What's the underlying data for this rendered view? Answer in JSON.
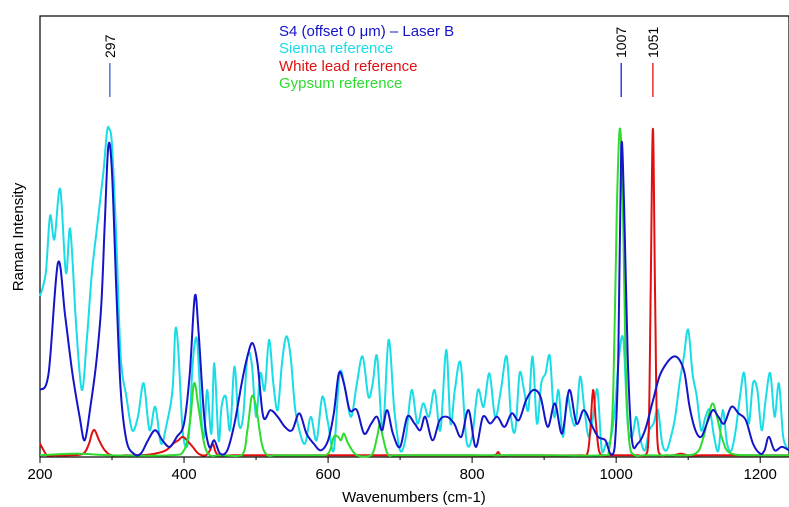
{
  "chart_data": {
    "type": "line",
    "xlabel": "Wavenumbers (cm-1)",
    "ylabel": "Raman Intensity",
    "xlim": [
      200,
      1240
    ],
    "ylim": [
      0,
      1.0
    ],
    "x_ticks": [
      "200",
      "400",
      "600",
      "800",
      "1000",
      "1200"
    ],
    "x_tick_values": [
      200,
      400,
      600,
      800,
      1000,
      1200
    ],
    "grid": false,
    "legend_position": "top-center",
    "peak_labels": [
      {
        "text": "297",
        "x": 297,
        "color": "#3b5bd6"
      },
      {
        "text": "1007",
        "x": 1007,
        "color": "#1a1ad6"
      },
      {
        "text": "1051",
        "x": 1051,
        "color": "#e01010"
      }
    ],
    "series": [
      {
        "name": "S4 (offset 0 μm) – Laser B",
        "color": "#1414c8",
        "x": [
          200,
          212,
          225,
          235,
          245,
          255,
          262,
          270,
          278,
          285,
          290,
          295,
          300,
          306,
          312,
          320,
          330,
          340,
          350,
          360,
          370,
          380,
          390,
          400,
          408,
          415,
          420,
          428,
          435,
          442,
          450,
          460,
          470,
          480,
          488,
          495,
          502,
          510,
          520,
          530,
          540,
          550,
          560,
          570,
          580,
          590,
          600,
          608,
          615,
          622,
          630,
          640,
          650,
          660,
          668,
          675,
          682,
          690,
          700,
          710,
          720,
          728,
          735,
          745,
          755,
          765,
          775,
          785,
          795,
          805,
          815,
          825,
          835,
          845,
          855,
          865,
          875,
          885,
          895,
          905,
          915,
          925,
          935,
          945,
          955,
          965,
          975,
          985,
          992,
          998,
          1003,
          1007,
          1011,
          1016,
          1022,
          1030,
          1040,
          1050,
          1060,
          1070,
          1080,
          1088,
          1095,
          1102,
          1110,
          1118,
          1126,
          1134,
          1142,
          1150,
          1160,
          1170,
          1180,
          1190,
          1200,
          1206,
          1212,
          1220,
          1230,
          1240
        ],
        "y": [
          0.2,
          0.25,
          0.58,
          0.42,
          0.25,
          0.12,
          0.05,
          0.15,
          0.28,
          0.45,
          0.7,
          0.93,
          0.85,
          0.5,
          0.2,
          0.05,
          0.01,
          0.01,
          0.05,
          0.08,
          0.05,
          0.03,
          0.06,
          0.1,
          0.25,
          0.48,
          0.38,
          0.12,
          0.03,
          0.05,
          0.01,
          0.02,
          0.1,
          0.22,
          0.3,
          0.34,
          0.28,
          0.12,
          0.14,
          0.12,
          0.09,
          0.08,
          0.13,
          0.07,
          0.04,
          0.02,
          0.05,
          0.13,
          0.25,
          0.22,
          0.14,
          0.14,
          0.07,
          0.1,
          0.12,
          0.08,
          0.14,
          0.07,
          0.03,
          0.12,
          0.1,
          0.08,
          0.12,
          0.05,
          0.11,
          0.12,
          0.1,
          0.06,
          0.14,
          0.03,
          0.12,
          0.1,
          0.12,
          0.09,
          0.13,
          0.11,
          0.17,
          0.2,
          0.18,
          0.09,
          0.16,
          0.07,
          0.2,
          0.1,
          0.14,
          0.1,
          0.06,
          0.05,
          0.01,
          0.03,
          0.3,
          0.92,
          0.75,
          0.3,
          0.05,
          0.04,
          0.08,
          0.16,
          0.24,
          0.28,
          0.3,
          0.29,
          0.25,
          0.15,
          0.08,
          0.06,
          0.1,
          0.14,
          0.12,
          0.1,
          0.15,
          0.13,
          0.11,
          0.04,
          0.01,
          0.02,
          0.06,
          0.02,
          0.03,
          0.02
        ]
      },
      {
        "name": "Sienna reference",
        "color": "#19dce6",
        "x": [
          200,
          208,
          214,
          220,
          228,
          236,
          242,
          250,
          258,
          265,
          272,
          280,
          288,
          293,
          296,
          300,
          306,
          312,
          320,
          328,
          336,
          344,
          352,
          360,
          368,
          376,
          384,
          388,
          392,
          398,
          404,
          408,
          412,
          418,
          424,
          428,
          432,
          438,
          442,
          448,
          452,
          458,
          464,
          470,
          476,
          482,
          488,
          494,
          500,
          506,
          512,
          518,
          524,
          530,
          536,
          542,
          548,
          554,
          560,
          568,
          576,
          584,
          592,
          600,
          608,
          616,
          624,
          632,
          640,
          648,
          656,
          662,
          668,
          676,
          684,
          692,
          700,
          708,
          716,
          724,
          732,
          740,
          748,
          756,
          764,
          770,
          776,
          784,
          792,
          800,
          808,
          816,
          824,
          832,
          840,
          848,
          854,
          860,
          866,
          872,
          878,
          884,
          890,
          896,
          902,
          908,
          914,
          920,
          926,
          932,
          938,
          944,
          950,
          956,
          962,
          968,
          974,
          980,
          986,
          992,
          998,
          1004,
          1010,
          1016,
          1022,
          1028,
          1034,
          1040,
          1046,
          1052,
          1058,
          1064,
          1070,
          1076,
          1082,
          1088,
          1094,
          1100,
          1106,
          1112,
          1118,
          1124,
          1130,
          1136,
          1142,
          1148,
          1154,
          1160,
          1166,
          1172,
          1178,
          1184,
          1190,
          1196,
          1202,
          1208,
          1214,
          1220,
          1226,
          1232,
          1240
        ],
        "y": [
          0.48,
          0.55,
          0.72,
          0.65,
          0.8,
          0.55,
          0.68,
          0.4,
          0.2,
          0.35,
          0.55,
          0.7,
          0.85,
          0.97,
          0.98,
          0.93,
          0.65,
          0.3,
          0.18,
          0.08,
          0.12,
          0.22,
          0.08,
          0.15,
          0.04,
          0.1,
          0.2,
          0.38,
          0.32,
          0.08,
          0.03,
          0.1,
          0.28,
          0.35,
          0.12,
          0.06,
          0.2,
          0.07,
          0.28,
          0.05,
          0.15,
          0.18,
          0.08,
          0.27,
          0.1,
          0.12,
          0.3,
          0.28,
          0.12,
          0.25,
          0.2,
          0.35,
          0.22,
          0.14,
          0.28,
          0.36,
          0.3,
          0.15,
          0.08,
          0.04,
          0.12,
          0.05,
          0.18,
          0.1,
          0.02,
          0.25,
          0.2,
          0.12,
          0.22,
          0.3,
          0.18,
          0.22,
          0.3,
          0.08,
          0.35,
          0.14,
          0.02,
          0.06,
          0.2,
          0.1,
          0.16,
          0.12,
          0.2,
          0.08,
          0.32,
          0.1,
          0.2,
          0.28,
          0.05,
          0.06,
          0.2,
          0.15,
          0.25,
          0.12,
          0.2,
          0.3,
          0.12,
          0.08,
          0.25,
          0.2,
          0.14,
          0.3,
          0.1,
          0.22,
          0.25,
          0.3,
          0.12,
          0.2,
          0.06,
          0.18,
          0.12,
          0.1,
          0.24,
          0.14,
          0.06,
          0.12,
          0.2,
          0.02,
          0.04,
          0.05,
          0.14,
          0.3,
          0.35,
          0.1,
          0.06,
          0.12,
          0.05,
          0.02,
          0.08,
          0.1,
          0.14,
          0.04,
          0.02,
          0.06,
          0.12,
          0.22,
          0.3,
          0.38,
          0.25,
          0.18,
          0.08,
          0.12,
          0.14,
          0.06,
          0.02,
          0.14,
          0.04,
          0.02,
          0.08,
          0.18,
          0.25,
          0.1,
          0.22,
          0.2,
          0.08,
          0.18,
          0.25,
          0.12,
          0.22,
          0.06,
          0.02
        ]
      },
      {
        "name": "White lead reference",
        "color": "#e01010",
        "x": [
          200,
          205,
          210,
          220,
          240,
          260,
          268,
          272,
          276,
          282,
          290,
          300,
          320,
          340,
          360,
          375,
          385,
          392,
          398,
          404,
          412,
          420,
          430,
          436,
          440,
          444,
          450,
          470,
          500,
          550,
          600,
          650,
          700,
          750,
          800,
          830,
          836,
          840,
          850,
          900,
          950,
          960,
          964,
          968,
          972,
          976,
          982,
          990,
          1000,
          1010,
          1020,
          1030,
          1040,
          1045,
          1048,
          1051,
          1054,
          1057,
          1062,
          1070,
          1080,
          1090,
          1100,
          1120,
          1140,
          1160,
          1180,
          1200,
          1220,
          1240
        ],
        "y": [
          0.04,
          0.02,
          0.005,
          0.005,
          0.005,
          0.01,
          0.04,
          0.07,
          0.08,
          0.05,
          0.02,
          0.005,
          0.005,
          0.005,
          0.01,
          0.02,
          0.04,
          0.05,
          0.06,
          0.05,
          0.03,
          0.01,
          0.005,
          0.02,
          0.04,
          0.015,
          0.005,
          0.005,
          0.005,
          0.005,
          0.005,
          0.005,
          0.005,
          0.005,
          0.005,
          0.005,
          0.015,
          0.005,
          0.005,
          0.005,
          0.005,
          0.01,
          0.08,
          0.2,
          0.1,
          0.02,
          0.005,
          0.005,
          0.005,
          0.005,
          0.005,
          0.005,
          0.005,
          0.06,
          0.5,
          0.98,
          0.5,
          0.06,
          0.005,
          0.005,
          0.005,
          0.01,
          0.005,
          0.005,
          0.005,
          0.005,
          0.005,
          0.005,
          0.005,
          0.005
        ]
      },
      {
        "name": "Gypsum reference",
        "color": "#2ddc2d",
        "x": [
          200,
          250,
          300,
          380,
          400,
          408,
          414,
          420,
          428,
          436,
          450,
          480,
          488,
          494,
          500,
          508,
          516,
          530,
          580,
          600,
          608,
          614,
          618,
          622,
          628,
          640,
          660,
          668,
          672,
          676,
          684,
          700,
          800,
          900,
          980,
          990,
          996,
          1001,
          1005,
          1009,
          1013,
          1018,
          1026,
          1040,
          1080,
          1110,
          1120,
          1128,
          1134,
          1140,
          1148,
          1160,
          1200,
          1240
        ],
        "y": [
          0.005,
          0.01,
          0.005,
          0.005,
          0.02,
          0.1,
          0.22,
          0.15,
          0.04,
          0.005,
          0.005,
          0.005,
          0.08,
          0.18,
          0.15,
          0.04,
          0.005,
          0.005,
          0.005,
          0.01,
          0.06,
          0.06,
          0.05,
          0.07,
          0.04,
          0.005,
          0.005,
          0.06,
          0.1,
          0.06,
          0.005,
          0.005,
          0.005,
          0.005,
          0.005,
          0.02,
          0.2,
          0.75,
          0.98,
          0.8,
          0.3,
          0.05,
          0.005,
          0.005,
          0.005,
          0.01,
          0.05,
          0.12,
          0.16,
          0.12,
          0.05,
          0.01,
          0.005,
          0.005
        ]
      }
    ]
  }
}
